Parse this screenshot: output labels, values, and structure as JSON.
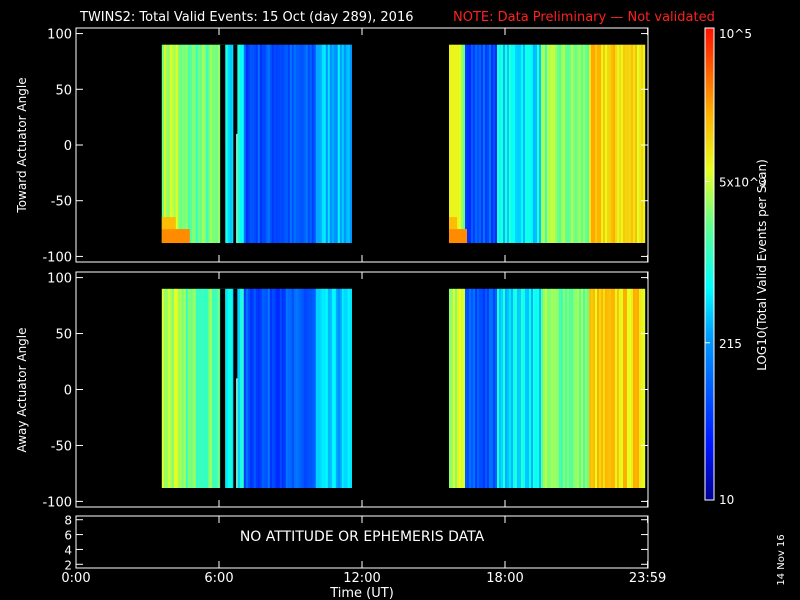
{
  "header": {
    "title": "TWINS2: Total Valid Events: 15 Oct (day 289), 2016",
    "note": "NOTE: Data Preliminary — Not validated"
  },
  "colors": {
    "background": "#000000",
    "foreground": "#ffffff",
    "note": "#ff2020"
  },
  "chart_data": [
    {
      "type": "heatmap",
      "panel": "top",
      "ylabel": "Toward Actuator Angle",
      "ylim": [
        -105,
        105
      ],
      "yticks": [
        -100,
        -50,
        0,
        50,
        100
      ],
      "xlim": [
        0,
        24
      ],
      "xticks": [
        0,
        6,
        12,
        18,
        23.983
      ],
      "segments": [
        [
          3.6,
          11.55
        ],
        [
          15.65,
          23.85
        ]
      ]
    },
    {
      "type": "heatmap",
      "panel": "middle",
      "ylabel": "Away Actuator Angle",
      "ylim": [
        -105,
        105
      ],
      "yticks": [
        -100,
        -50,
        0,
        50,
        100
      ],
      "xlim": [
        0,
        24
      ],
      "xticks": [
        0,
        6,
        12,
        18,
        23.983
      ],
      "segments": [
        [
          3.6,
          11.55
        ],
        [
          15.65,
          23.85
        ]
      ]
    },
    {
      "type": "line",
      "panel": "bottom",
      "ylim": [
        1.5,
        8.5
      ],
      "yticks": [
        2,
        4,
        6,
        8
      ],
      "message": "NO ATTITUDE OR EPHEMERIS DATA",
      "xlabel": "Time (UT)",
      "xtick_labels": [
        "0:00",
        "6:00",
        "12:00",
        "18:00",
        "23:59"
      ]
    }
  ],
  "colorbar": {
    "label": "LOG10(Total Valid Events per Scan)",
    "scale": "log",
    "range": [
      10,
      100000
    ],
    "ticks": [
      {
        "value": 10,
        "label": "10"
      },
      {
        "value": 215,
        "label": "215"
      },
      {
        "value": 5000,
        "label": "5x10^3"
      },
      {
        "value": 100000,
        "label": "10^5"
      }
    ]
  },
  "footer": {
    "date_stamp": "14 Nov 16"
  }
}
